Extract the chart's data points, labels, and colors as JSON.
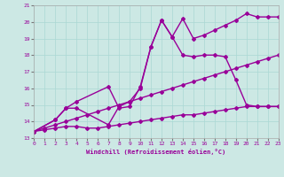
{
  "xlabel": "Windchill (Refroidissement éolien,°C)",
  "xlim": [
    0,
    23
  ],
  "ylim": [
    13,
    21
  ],
  "yticks": [
    13,
    14,
    15,
    16,
    17,
    18,
    19,
    20,
    21
  ],
  "xticks": [
    0,
    1,
    2,
    3,
    4,
    5,
    6,
    7,
    8,
    9,
    10,
    11,
    12,
    13,
    14,
    15,
    16,
    17,
    18,
    19,
    20,
    21,
    22,
    23
  ],
  "bg_color": "#cce8e4",
  "line_color": "#990099",
  "grid_color": "#aad8d4",
  "series": [
    {
      "x": [
        0,
        1,
        2,
        3,
        4,
        5,
        6,
        7,
        8,
        9,
        10,
        11,
        12,
        13,
        14,
        15,
        16,
        17,
        18,
        19,
        20,
        21,
        22,
        23
      ],
      "y": [
        13.4,
        13.6,
        13.8,
        14.0,
        14.2,
        14.4,
        14.6,
        14.8,
        15.0,
        15.2,
        15.4,
        15.6,
        15.8,
        16.0,
        16.2,
        16.4,
        16.6,
        16.8,
        17.0,
        17.2,
        17.4,
        17.6,
        17.8,
        18.0
      ],
      "marker": "D",
      "markersize": 2,
      "linewidth": 1.0
    },
    {
      "x": [
        0,
        1,
        2,
        3,
        4,
        5,
        6,
        7,
        8,
        9,
        10,
        11,
        12,
        13,
        14,
        15,
        16,
        17,
        18,
        19,
        20,
        21,
        22,
        23
      ],
      "y": [
        13.4,
        13.5,
        13.6,
        13.7,
        13.7,
        13.6,
        13.6,
        13.7,
        13.8,
        13.9,
        14.0,
        14.1,
        14.2,
        14.3,
        14.4,
        14.4,
        14.5,
        14.6,
        14.7,
        14.8,
        14.9,
        14.9,
        14.9,
        14.9
      ],
      "marker": "D",
      "markersize": 2,
      "linewidth": 1.0
    },
    {
      "x": [
        0,
        2,
        3,
        4,
        7,
        8,
        9,
        10,
        11,
        12,
        13,
        14,
        15,
        16,
        17,
        18,
        19,
        20,
        21,
        22,
        23
      ],
      "y": [
        13.4,
        14.1,
        14.8,
        15.2,
        16.1,
        14.8,
        14.9,
        16.1,
        18.5,
        20.1,
        19.1,
        18.0,
        17.9,
        18.0,
        18.0,
        17.9,
        16.5,
        15.0,
        14.9,
        14.9,
        14.9
      ],
      "marker": "D",
      "markersize": 2,
      "linewidth": 1.0
    },
    {
      "x": [
        0,
        2,
        3,
        4,
        7,
        8,
        9,
        10,
        11,
        12,
        13,
        14,
        15,
        16,
        17,
        18,
        19,
        20,
        21,
        22,
        23
      ],
      "y": [
        13.4,
        14.1,
        14.8,
        14.8,
        13.8,
        14.9,
        15.2,
        16.0,
        18.5,
        20.1,
        19.1,
        20.2,
        19.0,
        19.2,
        19.5,
        19.8,
        20.1,
        20.5,
        20.3,
        20.3,
        20.3
      ],
      "marker": "D",
      "markersize": 2,
      "linewidth": 1.0
    }
  ]
}
